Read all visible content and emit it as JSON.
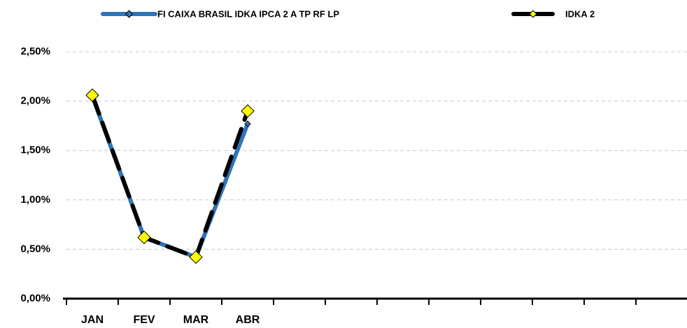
{
  "chart_data": {
    "type": "line",
    "categories": [
      "JAN",
      "FEV",
      "MAR",
      "ABR",
      null,
      null,
      null,
      null,
      null,
      null,
      null,
      null
    ],
    "series": [
      {
        "name": "FI CAIXA BRASIL IDKA IPCA 2 A TP RF LP",
        "color": "#2e75b6",
        "values": [
          2.05,
          0.62,
          0.42,
          1.77,
          null,
          null,
          null,
          null,
          null,
          null,
          null,
          null
        ]
      },
      {
        "name": "IDKA 2",
        "color": "#000000",
        "marker_color": "#ffff00",
        "values": [
          2.06,
          0.62,
          0.42,
          1.9,
          null,
          null,
          null,
          null,
          null,
          null,
          null,
          null
        ]
      }
    ],
    "ylim": [
      0,
      2.5
    ],
    "yticks": [
      {
        "value": 0,
        "label": "0,00%"
      },
      {
        "value": 0.5,
        "label": "0,50%"
      },
      {
        "value": 1,
        "label": "1,00%"
      },
      {
        "value": 1.5,
        "label": "1,50%"
      },
      {
        "value": 2,
        "label": "2,00%"
      },
      {
        "value": 2.5,
        "label": "2,50%"
      }
    ],
    "grid": true,
    "legend": "top"
  }
}
